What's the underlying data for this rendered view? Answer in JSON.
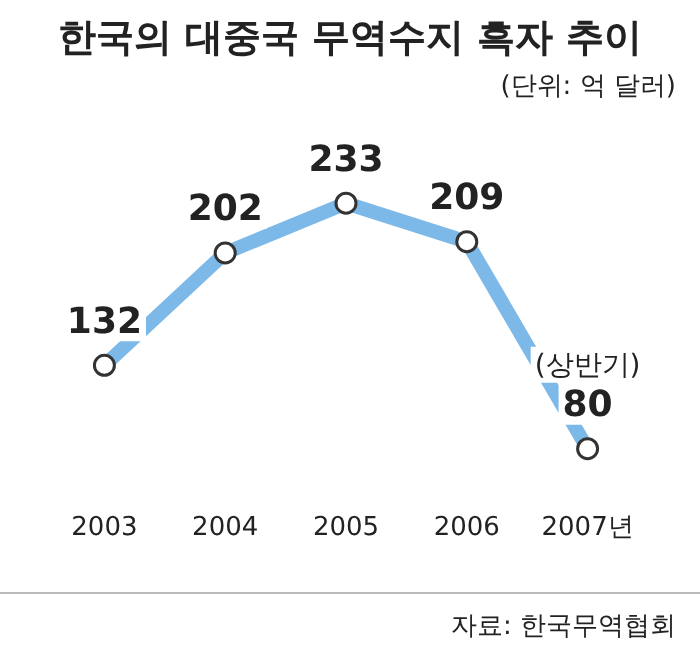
{
  "chart_data": {
    "type": "line",
    "title": "한국의 대중국 무역수지 흑자 추이",
    "subtitle": "(단위: 억 달러)",
    "categories": [
      "2003",
      "2004",
      "2005",
      "2006",
      "2007년"
    ],
    "series": [
      {
        "color": "#7db9e8",
        "values": [
          132,
          202,
          233,
          209,
          80
        ]
      }
    ],
    "data_labels": true,
    "marker": "circle",
    "line_style": "solid",
    "grid": false,
    "legend": false,
    "annotations": [
      {
        "text": "(상반기)",
        "x": "2007년",
        "y": 80
      },
      "자료: 한국무역협회"
    ]
  }
}
